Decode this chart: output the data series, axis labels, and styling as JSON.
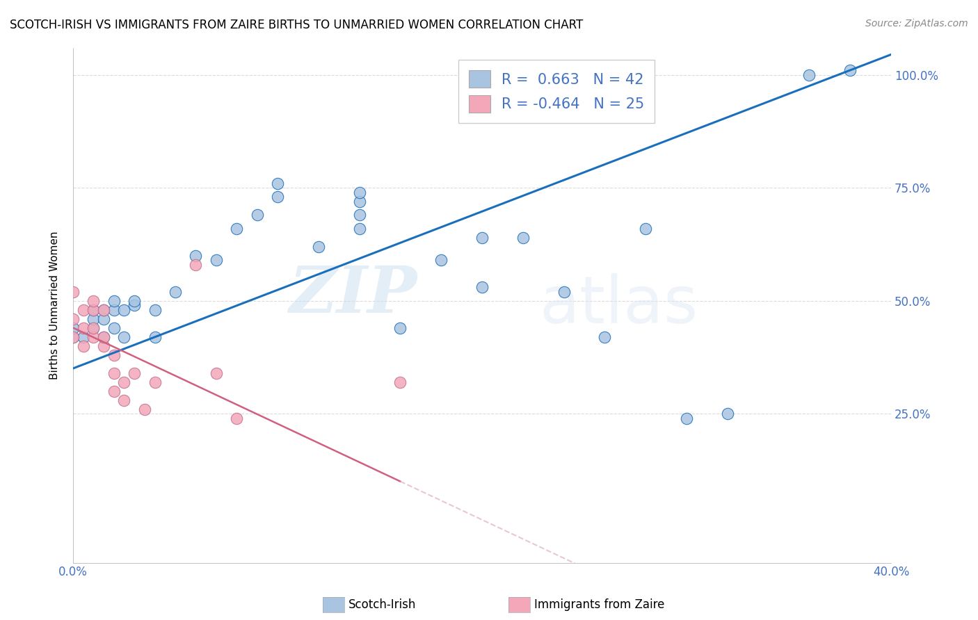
{
  "title": "SCOTCH-IRISH VS IMMIGRANTS FROM ZAIRE BIRTHS TO UNMARRIED WOMEN CORRELATION CHART",
  "source": "Source: ZipAtlas.com",
  "xlabel": "",
  "ylabel": "Births to Unmarried Women",
  "xmin": 0.0,
  "xmax": 0.4,
  "ymin": -0.08,
  "ymax": 1.06,
  "x_ticks": [
    0.0,
    0.05,
    0.1,
    0.15,
    0.2,
    0.25,
    0.3,
    0.35,
    0.4
  ],
  "x_tick_labels": [
    "0.0%",
    "",
    "",
    "",
    "",
    "",
    "",
    "",
    "40.0%"
  ],
  "y_ticks": [
    0.25,
    0.5,
    0.75,
    1.0
  ],
  "R_blue": 0.663,
  "N_blue": 42,
  "R_pink": -0.464,
  "N_pink": 25,
  "color_blue": "#a8c4e0",
  "color_pink": "#f4a7b9",
  "line_blue": "#1a6fbd",
  "line_pink": "#d06080",
  "line_pink_dashed": "#e0b0c0",
  "legend_label_blue": "Scotch-Irish",
  "legend_label_pink": "Immigrants from Zaire",
  "watermark_text": "ZIP",
  "watermark_text2": "atlas",
  "blue_x": [
    0.0,
    0.0,
    0.005,
    0.01,
    0.01,
    0.01,
    0.015,
    0.015,
    0.015,
    0.02,
    0.02,
    0.02,
    0.025,
    0.025,
    0.03,
    0.03,
    0.04,
    0.04,
    0.05,
    0.06,
    0.07,
    0.08,
    0.09,
    0.1,
    0.1,
    0.12,
    0.14,
    0.14,
    0.14,
    0.14,
    0.16,
    0.18,
    0.2,
    0.2,
    0.22,
    0.24,
    0.26,
    0.28,
    0.3,
    0.32,
    0.36,
    0.38
  ],
  "blue_y": [
    0.42,
    0.44,
    0.42,
    0.44,
    0.46,
    0.48,
    0.42,
    0.46,
    0.48,
    0.44,
    0.48,
    0.5,
    0.42,
    0.48,
    0.49,
    0.5,
    0.42,
    0.48,
    0.52,
    0.6,
    0.59,
    0.66,
    0.69,
    0.73,
    0.76,
    0.62,
    0.66,
    0.69,
    0.72,
    0.74,
    0.44,
    0.59,
    0.53,
    0.64,
    0.64,
    0.52,
    0.42,
    0.66,
    0.24,
    0.25,
    1.0,
    1.01
  ],
  "pink_x": [
    0.0,
    0.0,
    0.0,
    0.005,
    0.005,
    0.005,
    0.01,
    0.01,
    0.01,
    0.01,
    0.015,
    0.015,
    0.015,
    0.02,
    0.02,
    0.02,
    0.025,
    0.025,
    0.03,
    0.035,
    0.04,
    0.06,
    0.07,
    0.08,
    0.16
  ],
  "pink_y": [
    0.42,
    0.46,
    0.52,
    0.4,
    0.44,
    0.48,
    0.42,
    0.44,
    0.48,
    0.5,
    0.4,
    0.42,
    0.48,
    0.3,
    0.34,
    0.38,
    0.28,
    0.32,
    0.34,
    0.26,
    0.32,
    0.58,
    0.34,
    0.24,
    0.32
  ],
  "background_color": "#ffffff",
  "grid_color": "#cccccc"
}
